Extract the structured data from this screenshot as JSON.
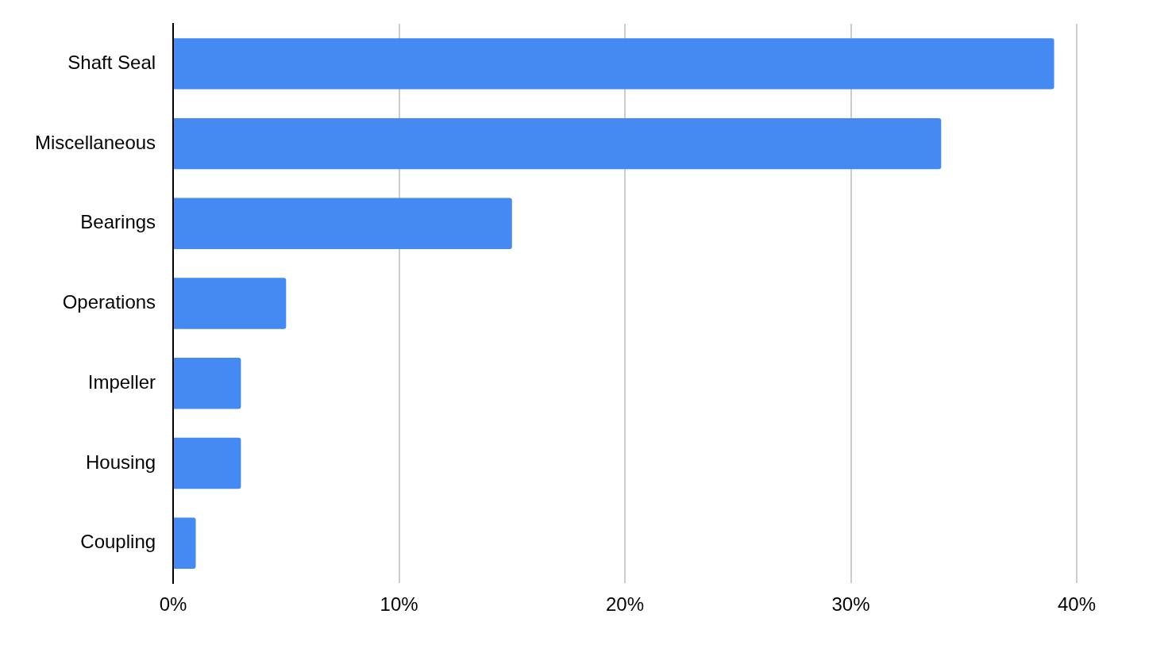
{
  "chart_data": {
    "type": "bar",
    "orientation": "horizontal",
    "categories": [
      "Shaft Seal",
      "Miscellaneous",
      "Bearings",
      "Operations",
      "Impeller",
      "Housing",
      "Coupling"
    ],
    "values": [
      39,
      34,
      15,
      5,
      3,
      3,
      1
    ],
    "color": "#4589f2",
    "xlim": [
      0,
      40
    ],
    "xticks": [
      {
        "value": 0,
        "label": "0%"
      },
      {
        "value": 10,
        "label": "10%"
      },
      {
        "value": 20,
        "label": "20%"
      },
      {
        "value": 30,
        "label": "30%"
      },
      {
        "value": 40,
        "label": "40%"
      }
    ],
    "grid": true
  }
}
